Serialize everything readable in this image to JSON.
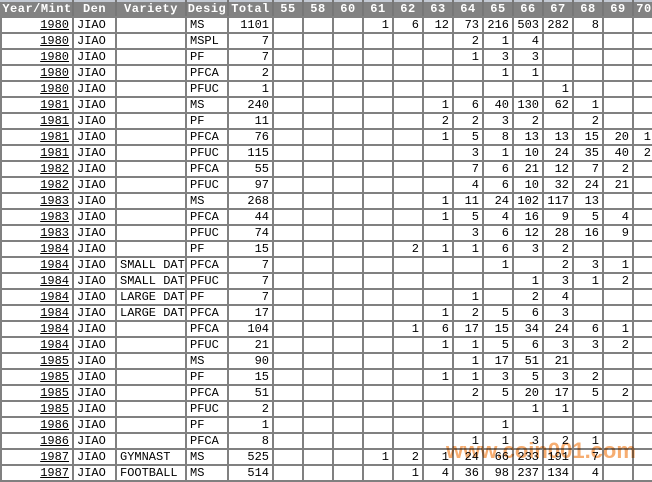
{
  "colors": {
    "header_bg": "#808080",
    "grid_line": "#808080",
    "year_link_blue": "#3232cc",
    "watermark_orange": "#f49b52",
    "cell_bg": "#ffffff"
  },
  "watermark": {
    "text": "www.coin001.com"
  },
  "table": {
    "columns": [
      "Year/Mint",
      "Den",
      "Variety",
      "Desig",
      "Total",
      "55",
      "58",
      "60",
      "61",
      "62",
      "63",
      "64",
      "65",
      "66",
      "67",
      "68",
      "69",
      "70"
    ],
    "grade_labels": [
      "55",
      "58",
      "60",
      "61",
      "62",
      "63",
      "64",
      "65",
      "66",
      "67",
      "68",
      "69",
      "70"
    ],
    "rows": [
      {
        "year": "1980",
        "den": "JIAO",
        "variety": "",
        "desig": "MS",
        "total": "1101",
        "grades": [
          "",
          "",
          "",
          "1",
          "6",
          "12",
          "73",
          "216",
          "503",
          "282",
          "8",
          "",
          ""
        ]
      },
      {
        "year": "1980",
        "den": "JIAO",
        "variety": "",
        "desig": "MSPL",
        "total": "7",
        "grades": [
          "",
          "",
          "",
          "",
          "",
          "",
          "2",
          "1",
          "4",
          "",
          "",
          "",
          ""
        ]
      },
      {
        "year": "1980",
        "den": "JIAO",
        "variety": "",
        "desig": "PF",
        "total": "7",
        "grades": [
          "",
          "",
          "",
          "",
          "",
          "",
          "1",
          "3",
          "3",
          "",
          "",
          "",
          ""
        ]
      },
      {
        "year": "1980",
        "den": "JIAO",
        "variety": "",
        "desig": "PFCA",
        "total": "2",
        "grades": [
          "",
          "",
          "",
          "",
          "",
          "",
          "",
          "1",
          "1",
          "",
          "",
          "",
          ""
        ]
      },
      {
        "year": "1980",
        "den": "JIAO",
        "variety": "",
        "desig": "PFUC",
        "total": "1",
        "grades": [
          "",
          "",
          "",
          "",
          "",
          "",
          "",
          "",
          "",
          "1",
          "",
          "",
          ""
        ]
      },
      {
        "year": "1981",
        "den": "JIAO",
        "variety": "",
        "desig": "MS",
        "total": "240",
        "grades": [
          "",
          "",
          "",
          "",
          "",
          "1",
          "6",
          "40",
          "130",
          "62",
          "1",
          "",
          ""
        ]
      },
      {
        "year": "1981",
        "den": "JIAO",
        "variety": "",
        "desig": "PF",
        "total": "11",
        "grades": [
          "",
          "",
          "",
          "",
          "",
          "2",
          "2",
          "3",
          "2",
          "",
          "2",
          "",
          ""
        ]
      },
      {
        "year": "1981",
        "den": "JIAO",
        "variety": "",
        "desig": "PFCA",
        "total": "76",
        "grades": [
          "",
          "",
          "",
          "",
          "",
          "1",
          "5",
          "8",
          "13",
          "13",
          "15",
          "20",
          "1"
        ]
      },
      {
        "year": "1981",
        "den": "JIAO",
        "variety": "",
        "desig": "PFUC",
        "total": "115",
        "grades": [
          "",
          "",
          "",
          "",
          "",
          "",
          "3",
          "1",
          "10",
          "24",
          "35",
          "40",
          "2"
        ]
      },
      {
        "year": "1982",
        "den": "JIAO",
        "variety": "",
        "desig": "PFCA",
        "total": "55",
        "grades": [
          "",
          "",
          "",
          "",
          "",
          "",
          "7",
          "6",
          "21",
          "12",
          "7",
          "2",
          ""
        ]
      },
      {
        "year": "1982",
        "den": "JIAO",
        "variety": "",
        "desig": "PFUC",
        "total": "97",
        "grades": [
          "",
          "",
          "",
          "",
          "",
          "",
          "4",
          "6",
          "10",
          "32",
          "24",
          "21",
          ""
        ]
      },
      {
        "year": "1983",
        "den": "JIAO",
        "variety": "",
        "desig": "MS",
        "total": "268",
        "grades": [
          "",
          "",
          "",
          "",
          "",
          "1",
          "11",
          "24",
          "102",
          "117",
          "13",
          "",
          ""
        ]
      },
      {
        "year": "1983",
        "den": "JIAO",
        "variety": "",
        "desig": "PFCA",
        "total": "44",
        "grades": [
          "",
          "",
          "",
          "",
          "",
          "1",
          "5",
          "4",
          "16",
          "9",
          "5",
          "4",
          ""
        ]
      },
      {
        "year": "1983",
        "den": "JIAO",
        "variety": "",
        "desig": "PFUC",
        "total": "74",
        "grades": [
          "",
          "",
          "",
          "",
          "",
          "",
          "3",
          "6",
          "12",
          "28",
          "16",
          "9",
          ""
        ]
      },
      {
        "year": "1984",
        "den": "JIAO",
        "variety": "",
        "desig": "PF",
        "total": "15",
        "grades": [
          "",
          "",
          "",
          "",
          "2",
          "1",
          "1",
          "6",
          "3",
          "2",
          "",
          "",
          ""
        ]
      },
      {
        "year": "1984",
        "den": "JIAO",
        "variety": "SMALL DATE",
        "desig": "PFCA",
        "total": "7",
        "grades": [
          "",
          "",
          "",
          "",
          "",
          "",
          "",
          "1",
          "",
          "2",
          "3",
          "1",
          ""
        ]
      },
      {
        "year": "1984",
        "den": "JIAO",
        "variety": "SMALL DATE",
        "desig": "PFUC",
        "total": "7",
        "grades": [
          "",
          "",
          "",
          "",
          "",
          "",
          "",
          "",
          "1",
          "3",
          "1",
          "2",
          ""
        ]
      },
      {
        "year": "1984",
        "den": "JIAO",
        "variety": "LARGE DATE",
        "desig": "PF",
        "total": "7",
        "grades": [
          "",
          "",
          "",
          "",
          "",
          "",
          "1",
          "",
          "2",
          "4",
          "",
          "",
          ""
        ]
      },
      {
        "year": "1984",
        "den": "JIAO",
        "variety": "LARGE DATE",
        "desig": "PFCA",
        "total": "17",
        "grades": [
          "",
          "",
          "",
          "",
          "",
          "1",
          "2",
          "5",
          "6",
          "3",
          "",
          "",
          ""
        ]
      },
      {
        "year": "1984",
        "den": "JIAO",
        "variety": "",
        "desig": "PFCA",
        "total": "104",
        "grades": [
          "",
          "",
          "",
          "",
          "1",
          "6",
          "17",
          "15",
          "34",
          "24",
          "6",
          "1",
          ""
        ]
      },
      {
        "year": "1984",
        "den": "JIAO",
        "variety": "",
        "desig": "PFUC",
        "total": "21",
        "grades": [
          "",
          "",
          "",
          "",
          "",
          "1",
          "1",
          "5",
          "6",
          "3",
          "3",
          "2",
          ""
        ]
      },
      {
        "year": "1985",
        "den": "JIAO",
        "variety": "",
        "desig": "MS",
        "total": "90",
        "grades": [
          "",
          "",
          "",
          "",
          "",
          "",
          "1",
          "17",
          "51",
          "21",
          "",
          "",
          ""
        ]
      },
      {
        "year": "1985",
        "den": "JIAO",
        "variety": "",
        "desig": "PF",
        "total": "15",
        "grades": [
          "",
          "",
          "",
          "",
          "",
          "1",
          "1",
          "3",
          "5",
          "3",
          "2",
          "",
          ""
        ]
      },
      {
        "year": "1985",
        "den": "JIAO",
        "variety": "",
        "desig": "PFCA",
        "total": "51",
        "grades": [
          "",
          "",
          "",
          "",
          "",
          "",
          "2",
          "5",
          "20",
          "17",
          "5",
          "2",
          ""
        ]
      },
      {
        "year": "1985",
        "den": "JIAO",
        "variety": "",
        "desig": "PFUC",
        "total": "2",
        "grades": [
          "",
          "",
          "",
          "",
          "",
          "",
          "",
          "",
          "1",
          "1",
          "",
          "",
          ""
        ]
      },
      {
        "year": "1986",
        "den": "JIAO",
        "variety": "",
        "desig": "PF",
        "total": "1",
        "grades": [
          "",
          "",
          "",
          "",
          "",
          "",
          "",
          "1",
          "",
          "",
          "",
          "",
          ""
        ]
      },
      {
        "year": "1986",
        "den": "JIAO",
        "variety": "",
        "desig": "PFCA",
        "total": "8",
        "grades": [
          "",
          "",
          "",
          "",
          "",
          "",
          "1",
          "1",
          "3",
          "2",
          "1",
          "",
          ""
        ]
      },
      {
        "year": "1987",
        "den": "JIAO",
        "variety": "GYMNAST",
        "desig": "MS",
        "total": "525",
        "grades": [
          "",
          "",
          "",
          "1",
          "2",
          "1",
          "24",
          "66",
          "233",
          "191",
          "7",
          "",
          ""
        ]
      },
      {
        "year": "1987",
        "den": "JIAO",
        "variety": "FOOTBALL",
        "desig": "MS",
        "total": "514",
        "grades": [
          "",
          "",
          "",
          "",
          "1",
          "4",
          "36",
          "98",
          "237",
          "134",
          "4",
          "",
          ""
        ]
      }
    ]
  }
}
